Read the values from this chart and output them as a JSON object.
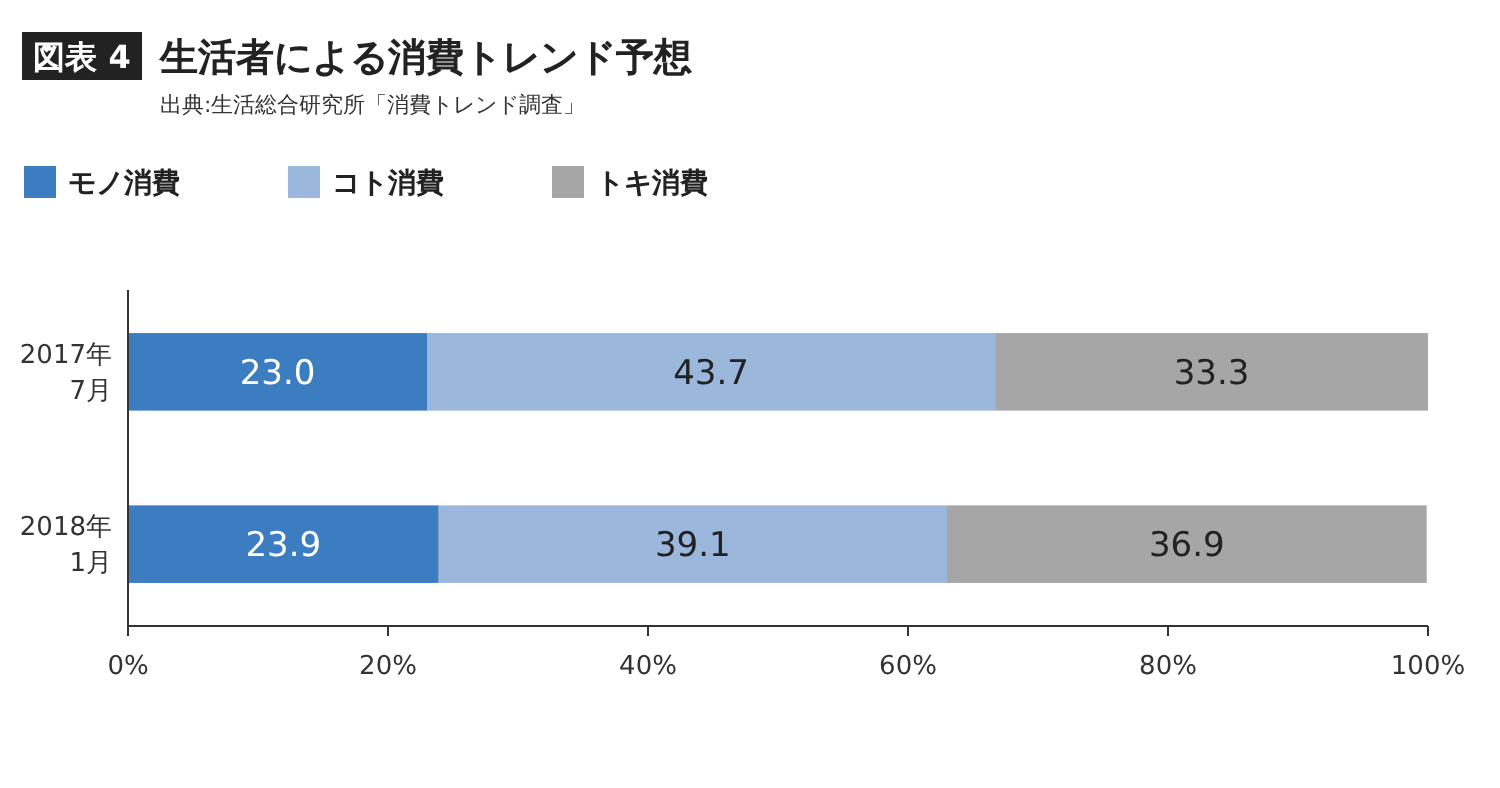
{
  "chart_data": {
    "type": "bar",
    "orientation": "horizontal",
    "stacked": true,
    "title": "生活者による消費トレンド予想",
    "subtitle": "出典:生活総合研究所「消費トレンド調査」",
    "annotations": [
      "図表 4"
    ],
    "categories": [
      "2017年\n7月",
      "2018年\n1月"
    ],
    "series": [
      {
        "name": "モノ消費",
        "color": "#3b7dc0",
        "values": [
          23.0,
          23.9
        ],
        "value_labels": [
          "23.0",
          "23.9"
        ]
      },
      {
        "name": "コト消費",
        "color": "#9bb7dc",
        "values": [
          43.7,
          39.1
        ],
        "value_labels": [
          "43.7",
          "39.1"
        ]
      },
      {
        "name": "トキ消費",
        "color": "#a6a6a6",
        "values": [
          33.3,
          36.9
        ],
        "value_labels": [
          "33.3",
          "36.9"
        ]
      }
    ],
    "xlim": [
      0,
      100
    ],
    "xticks": [
      {
        "value": 0,
        "label": "0%"
      },
      {
        "value": 20,
        "label": "20%"
      },
      {
        "value": 40,
        "label": "40%"
      },
      {
        "value": 60,
        "label": "60%"
      },
      {
        "value": 80,
        "label": "80%"
      },
      {
        "value": 100,
        "label": "100%"
      }
    ],
    "legend": "top left",
    "grid": false
  }
}
